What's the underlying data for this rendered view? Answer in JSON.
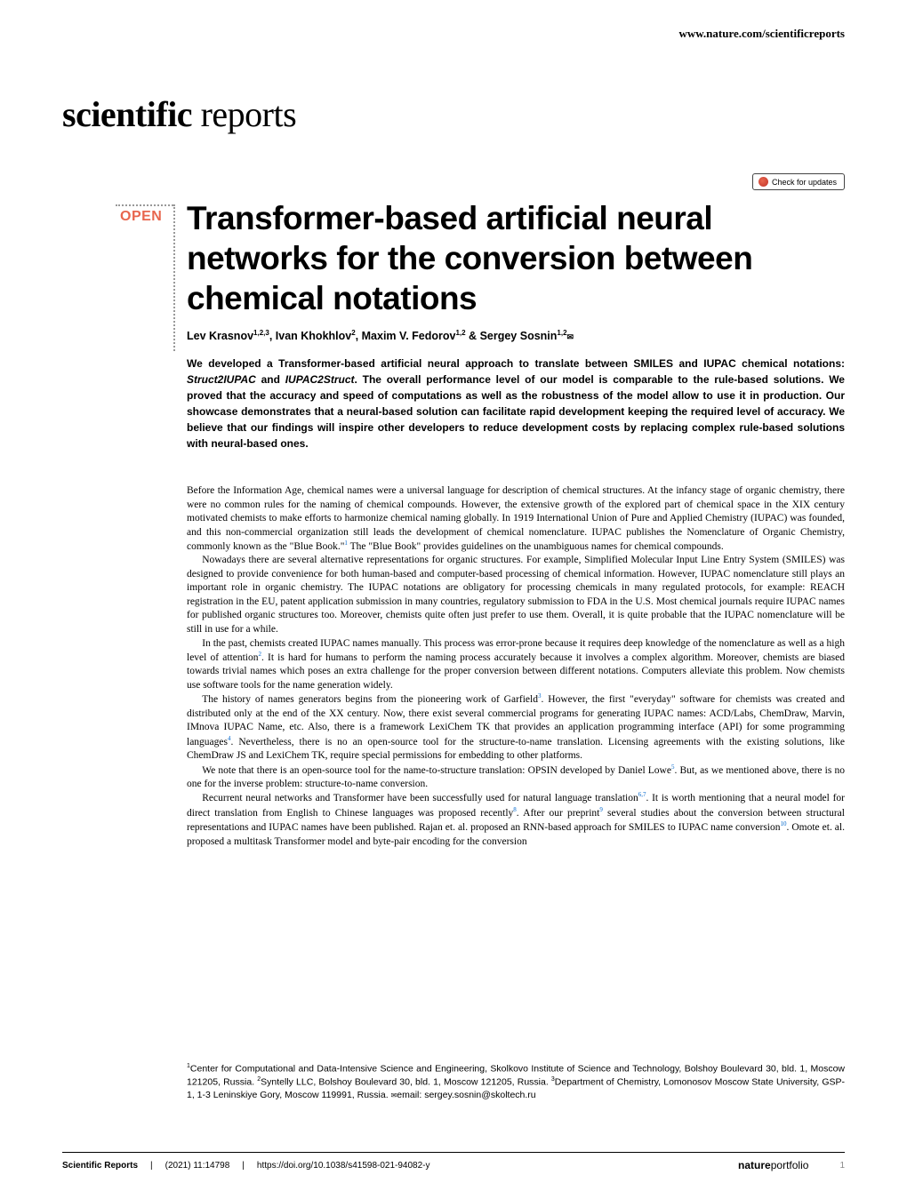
{
  "header": {
    "url": "www.nature.com/scientificreports"
  },
  "journal": {
    "name_bold": "scientific",
    "name_light": " reports"
  },
  "check_updates": {
    "label": "Check for updates"
  },
  "open_badge": "OPEN",
  "title": "Transformer-based artificial neural networks for the conversion between chemical notations",
  "authors": {
    "a1": {
      "name": "Lev Krasnov",
      "aff": "1,2,3"
    },
    "a2": {
      "name": "Ivan Khokhlov",
      "aff": "2"
    },
    "a3": {
      "name": "Maxim V. Fedorov",
      "aff": "1,2"
    },
    "a4": {
      "name": "Sergey Sosnin",
      "aff": "1,2",
      "corresponding": true
    }
  },
  "abstract": {
    "p1a": "We developed a Transformer-based artificial neural approach to translate between SMILES and IUPAC chemical notations: ",
    "struct2iupac": "Struct2IUPAC",
    "p1b": " and ",
    "iupac2struct": "IUPAC2Struct",
    "p1c": ". The overall performance level of our model is comparable to the rule-based solutions. We proved that the accuracy and speed of computations as well as the robustness of the model allow to use it in production. Our showcase demonstrates that a neural-based solution can facilitate rapid development keeping the required level of accuracy. We believe that our findings will inspire other developers to reduce development costs by replacing complex rule-based solutions with neural-based ones."
  },
  "body": {
    "p1a": "Before the Information Age, chemical names were a universal language for description of chemical structures. At the infancy stage of organic chemistry, there were no common rules for the naming of chemical compounds. However, the extensive growth of the explored part of chemical space in the XIX century motivated chemists to make efforts to harmonize chemical naming globally. In 1919 International Union of Pure and Applied Chemistry (IUPAC) was founded, and this non-commercial organization still leads the development of chemical nomenclature. IUPAC publishes the Nomenclature of Organic Chemistry, commonly known as the \"Blue Book.\"",
    "p1b": " The \"Blue Book\" provides guidelines on the unambiguous names for chemical compounds.",
    "p2": "Nowadays there are several alternative representations for organic structures. For example, Simplified Molecular Input Line Entry System (SMILES) was designed to provide convenience for both human-based and computer-based processing of chemical information. However, IUPAC nomenclature still plays an important role in organic chemistry. The IUPAC notations are obligatory for processing chemicals in many regulated protocols, for example: REACH registration in the EU, patent application submission in many countries, regulatory submission to FDA in the U.S. Most chemical journals require IUPAC names for published organic structures too. Moreover, chemists quite often just prefer to use them. Overall, it is quite probable that the IUPAC nomenclature will be still in use for a while.",
    "p3a": "In the past, chemists created IUPAC names manually. This process was error-prone because it requires deep knowledge of the nomenclature as well as a high level of attention",
    "p3b": ". It is hard for humans to perform the naming process accurately because it involves a complex algorithm. Moreover, chemists are biased towards trivial names which poses an extra challenge for the proper conversion between different notations. Computers alleviate this problem. Now chemists use software tools for the name generation widely.",
    "p4a": "The history of names generators begins from the pioneering work of Garfield",
    "p4b": ". However, the first \"everyday\" software for chemists was created and distributed only at the end of the XX century. Now, there exist several commercial programs for generating IUPAC names: ACD/Labs, ChemDraw, Marvin, IMnova IUPAC Name, etc. Also, there is a framework LexiChem TK that provides an application programming interface (API) for some programming languages",
    "p4c": ". Nevertheless, there is no an open-source tool for the structure-to-name translation. Licensing agreements with the existing solutions, like ChemDraw JS and LexiChem TK, require special permissions for embedding to other platforms.",
    "p5a": "We note that there is an open-source tool for the name-to-structure translation: OPSIN developed by Daniel Lowe",
    "p5b": ". But, as we mentioned above, there is no one for the inverse problem: structure-to-name conversion.",
    "p6a": "Recurrent neural networks and Transformer have been successfully used for natural language translation",
    "p6b": ". It is worth mentioning that a neural model for direct translation from English to Chinese languages was proposed recently",
    "p6c": ". After our preprint",
    "p6d": " several studies about the conversion between structural representations and IUPAC names have been published. Rajan et. al. proposed an RNN-based approach for SMILES to IUPAC name conversion",
    "p6e": ". Omote et. al. proposed a multitask Transformer model and byte-pair encoding for the conversion",
    "ref1": "1",
    "ref2": "2",
    "ref3": "3",
    "ref4": "4",
    "ref5": "5",
    "ref67": "6,7",
    "ref8": "8",
    "ref9": "9",
    "ref10": "10"
  },
  "affiliations": {
    "aff1_sup": "1",
    "aff1": "Center for Computational and Data-Intensive Science and Engineering, Skolkovo Institute of Science and Technology, Bolshoy Boulevard 30, bld. 1, Moscow 121205, Russia. ",
    "aff2_sup": "2",
    "aff2": "Syntelly LLC, Bolshoy Boulevard 30, bld. 1, Moscow 121205, Russia. ",
    "aff3_sup": "3",
    "aff3": "Department of Chemistry, Lomonosov Moscow State University, GSP-1, 1-3 Leninskiye Gory, Moscow 119991, Russia. ",
    "email_label": "email: ",
    "email": "sergey.sosnin@skoltech.ru"
  },
  "footer": {
    "journal": "Scientific Reports",
    "citation": "(2021) 11:14798",
    "doi": "https://doi.org/10.1038/s41598-021-94082-y",
    "logo_bold": "nature",
    "logo_light": "portfolio",
    "page": "1"
  },
  "colors": {
    "accent": "#e8664e",
    "link": "#0066cc",
    "text": "#000000",
    "background": "#ffffff",
    "border_dotted": "#999999"
  }
}
